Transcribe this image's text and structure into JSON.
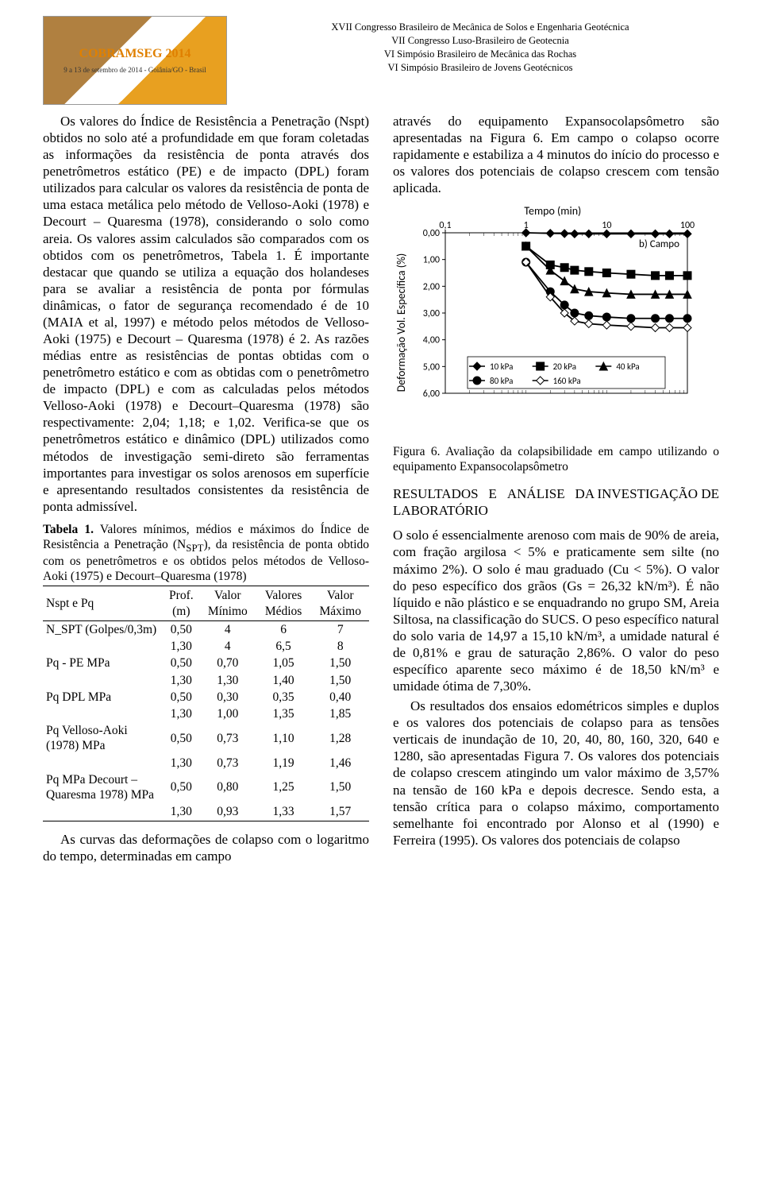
{
  "header": {
    "logo_title": "COBRAMSEG 2014",
    "logo_sub": "9 a 13 de setembro de 2014 - Goiânia/GO - Brasil",
    "lines": [
      "XVII Congresso Brasileiro de Mecânica de Solos e Engenharia Geotécnica",
      "VII Congresso Luso-Brasileiro de Geotecnia",
      "VI Simpósio Brasileiro de Mecânica das Rochas",
      "VI Simpósio Brasileiro de Jovens Geotécnicos"
    ]
  },
  "left": {
    "p1": "Os valores do Índice de Resistência a Penetração (Nspt) obtidos no solo até a profundidade em que foram coletadas as informações da resistência de ponta através dos penetrômetros estático (PE) e de impacto (DPL) foram utilizados para calcular os valores da resistência de ponta de uma estaca metálica pelo método de Velloso-Aoki (1978) e Decourt – Quaresma (1978), considerando o solo como areia. Os valores assim calculados são comparados com os obtidos com os penetrômetros, Tabela 1. É importante destacar que quando se utiliza a equação dos holandeses para se avaliar a resistência de ponta por fórmulas dinâmicas, o fator de segurança recomendado é de 10 (MAIA et al, 1997) e método pelos métodos de Velloso-Aoki (1975) e Decourt – Quaresma (1978) é 2. As razões médias entre as resistências de pontas obtidas com o penetrômetro estático e com as obtidas com o penetrômetro de impacto (DPL) e com as calculadas pelos métodos  Velloso-Aoki (1978) e Decourt–Quaresma (1978) são respectivamente: 2,04; 1,18; e 1,02. Verifica-se que os penetrômetros estático e dinâmico (DPL) utilizados como métodos de investigação semi-direto são ferramentas importantes para investigar os solos arenosos em superfície e apresentando resultados consistentes da resistência de ponta admissível.",
    "tbl_caption": "Tabela 1. Valores mínimos, médios e máximos do Índice de Resistência a Penetração (N_SPT), da resistência de ponta obtido com os penetrômetros e os obtidos pelos métodos de Velloso-Aoki (1975) e Decourt–Quaresma (1978)",
    "table": {
      "headers": [
        "Nspt e Pq",
        "Prof. (m)",
        "Valor Mínimo",
        "Valores Médios",
        "Valor Máximo"
      ],
      "rows": [
        [
          "N_SPT (Golpes/0,3m)",
          "0,50",
          "4",
          "6",
          "7"
        ],
        [
          "",
          "1,30",
          "4",
          "6,5",
          "8"
        ],
        [
          "Pq - PE MPa",
          "0,50",
          "0,70",
          "1,05",
          "1,50"
        ],
        [
          "",
          "1,30",
          "1,30",
          "1,40",
          "1,50"
        ],
        [
          "Pq DPL MPa",
          "0,50",
          "0,30",
          "0,35",
          "0,40"
        ],
        [
          "",
          "1,30",
          "1,00",
          "1,35",
          "1,85"
        ],
        [
          "Pq Velloso-Aoki (1978)  MPa",
          "0,50",
          "0,73",
          "1,10",
          "1,28"
        ],
        [
          "",
          "1,30",
          "0,73",
          "1,19",
          "1,46"
        ],
        [
          "Pq MPa Decourt – Quaresma 1978) MPa",
          "0,50",
          "0,80",
          "1,25",
          "1,50"
        ],
        [
          "",
          "1,30",
          "0,93",
          "1,33",
          "1,57"
        ]
      ]
    },
    "p2": "As curvas das deformações de colapso com o logaritmo do tempo, determinadas em campo"
  },
  "right": {
    "p1": "através do equipamento Expansocolapsômetro são apresentadas na Figura 6. Em campo o colapso ocorre rapidamente e estabiliza a 4 minutos do início do processo e os valores dos potenciais de colapso crescem com tensão aplicada.",
    "chart": {
      "type": "line",
      "title": "Tempo (min)",
      "ylabel": "Deformação Vol. Específica (%)",
      "inner_label": "b) Campo",
      "x_ticks": [
        "0,1",
        "1",
        "10",
        "100"
      ],
      "x_positions_log": [
        0.1,
        1,
        10,
        100
      ],
      "y_ticks": [
        "0,00",
        "1,00",
        "2,00",
        "3,00",
        "4,00",
        "5,00",
        "6,00"
      ],
      "ylim": [
        0,
        6
      ],
      "grid_color": "#000000",
      "background_color": "#ffffff",
      "title_fontsize": 14,
      "label_fontsize": 14,
      "line_width": 1.8,
      "marker_size": 5,
      "legend": [
        {
          "label": "10 kPa",
          "marker": "diamond",
          "color": "#000000",
          "fill": "#000000"
        },
        {
          "label": "20 kPa",
          "marker": "square",
          "color": "#000000",
          "fill": "#000000"
        },
        {
          "label": "40 kPa",
          "marker": "triangle",
          "color": "#000000",
          "fill": "#000000"
        },
        {
          "label": "80 kPa",
          "marker": "circle",
          "color": "#000000",
          "fill": "#000000"
        },
        {
          "label": "160 kPa",
          "marker": "diamond",
          "color": "#000000",
          "fill": "#ffffff"
        }
      ],
      "series": [
        {
          "name": "10 kPa",
          "marker": "diamond",
          "fill": "#000000",
          "x": [
            1,
            2,
            3,
            4,
            6,
            10,
            20,
            40,
            60,
            100
          ],
          "y": [
            0.0,
            0.02,
            0.03,
            0.04,
            0.04,
            0.04,
            0.04,
            0.04,
            0.04,
            0.04
          ]
        },
        {
          "name": "20 kPa",
          "marker": "square",
          "fill": "#000000",
          "x": [
            1,
            2,
            3,
            4,
            6,
            10,
            20,
            40,
            60,
            100
          ],
          "y": [
            0.5,
            1.2,
            1.3,
            1.4,
            1.45,
            1.5,
            1.55,
            1.6,
            1.6,
            1.6
          ]
        },
        {
          "name": "40 kPa",
          "marker": "triangle",
          "fill": "#000000",
          "x": [
            1,
            2,
            3,
            4,
            6,
            10,
            20,
            40,
            60,
            100
          ],
          "y": [
            0.5,
            1.4,
            1.8,
            2.1,
            2.2,
            2.25,
            2.3,
            2.3,
            2.3,
            2.3
          ]
        },
        {
          "name": "80 kPa",
          "marker": "circle",
          "fill": "#000000",
          "x": [
            1,
            2,
            3,
            4,
            6,
            10,
            20,
            40,
            60,
            100
          ],
          "y": [
            1.1,
            2.2,
            2.7,
            3.0,
            3.1,
            3.15,
            3.2,
            3.2,
            3.2,
            3.2
          ]
        },
        {
          "name": "160 kPa",
          "marker": "diamond",
          "fill": "#ffffff",
          "x": [
            1,
            2,
            3,
            4,
            6,
            10,
            20,
            40,
            60,
            100
          ],
          "y": [
            1.1,
            2.4,
            3.0,
            3.3,
            3.4,
            3.45,
            3.5,
            3.55,
            3.55,
            3.55
          ]
        }
      ]
    },
    "fig_caption": "Figura 6. Avaliação da colapsibilidade em campo utilizando o equipamento Expansocolapsômetro",
    "sec_head": "RESULTADOS E ANÁLISE DA INVESTIGAÇÃO DE LABORATÓRIO",
    "p2": "O solo é essencialmente arenoso com mais de 90% de areia, com fração argilosa < 5% e praticamente sem silte (no máximo 2%). O solo é mau graduado (Cu < 5%).  O valor do peso específico dos grãos (Gs = 26,32 kN/m³). É não líquido e não plástico e se enquadrando no grupo SM, Areia Siltosa, na classificação do SUCS. O peso específico natural do solo varia de 14,97 a 15,10 kN/m³, a umidade natural é de 0,81% e grau de saturação 2,86%. O valor do peso específico aparente seco máximo é de 18,50 kN/m³ e umidade ótima de 7,30%.",
    "p3": "Os resultados dos ensaios edométricos simples e duplos e os valores dos potenciais de colapso para as tensões verticais de inundação de 10, 20, 40, 80, 160, 320, 640 e 1280, são apresentadas Figura 7. Os valores dos potenciais de colapso crescem atingindo um valor máximo de 3,57% na tensão de 160 kPa e depois decresce. Sendo esta, a tensão crítica para o colapso máximo, comportamento semelhante foi encontrado por Alonso et al (1990) e Ferreira (1995). Os valores dos potenciais de colapso"
  }
}
